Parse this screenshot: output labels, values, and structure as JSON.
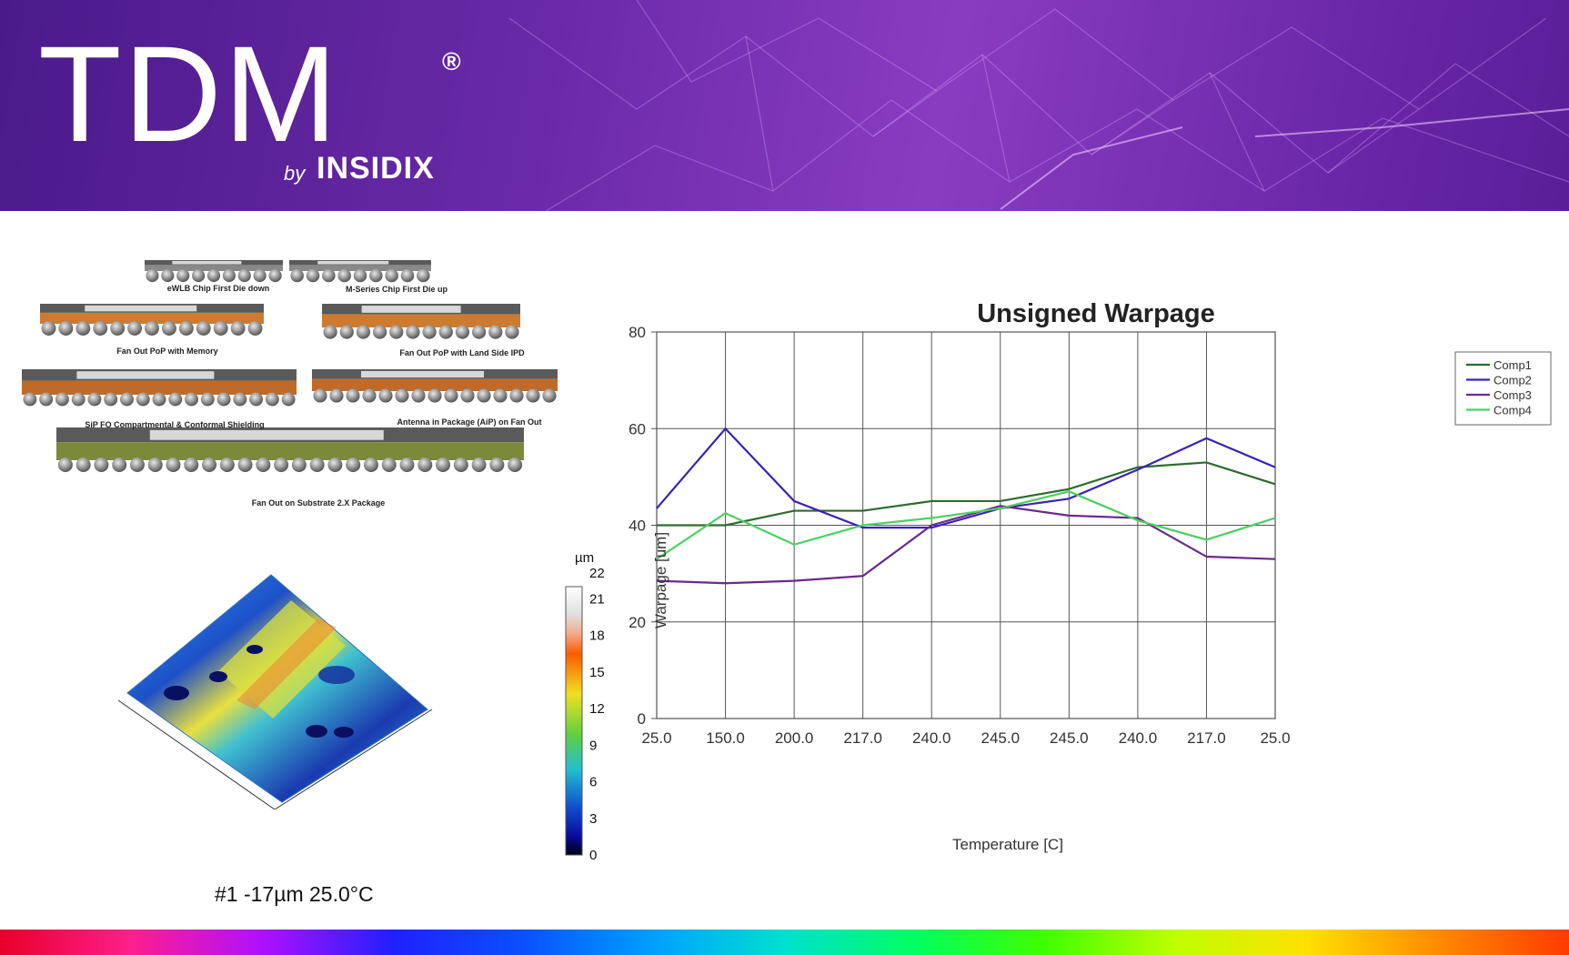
{
  "brand": {
    "logo_main": "TDM",
    "registered_mark": "®",
    "by": "by",
    "company": "INSIDIX"
  },
  "packages": [
    {
      "label": "eWLB Chip First Die down"
    },
    {
      "label": "M-Series Chip First Die up"
    },
    {
      "label": "Fan Out PoP with Memory"
    },
    {
      "label": "Fan Out PoP with Land Side IPD"
    },
    {
      "label": "SiP FO Compartmental & Conformal Shielding"
    },
    {
      "label": "Antenna in Package (AiP) on Fan Out"
    },
    {
      "label": "Fan Out on Substrate 2.X Package"
    }
  ],
  "surface_map": {
    "caption": "#1 -17µm 25.0°C",
    "unit": "µm",
    "colorbar_ticks": [
      "22",
      "21",
      "18",
      "15",
      "12",
      "9",
      "6",
      "3",
      "0"
    ]
  },
  "chart_data": {
    "type": "line",
    "title": "Unsigned Warpage",
    "xlabel": "Temperature [C]",
    "ylabel": "Warpage [um]",
    "categories": [
      "25.0",
      "150.0",
      "200.0",
      "217.0",
      "240.0",
      "245.0",
      "245.0",
      "240.0",
      "217.0",
      "25.0"
    ],
    "ylim": [
      0,
      80
    ],
    "yticks": [
      "0",
      "20",
      "40",
      "60",
      "80"
    ],
    "grid": true,
    "legend": "top-right",
    "series": [
      {
        "name": "Comp1",
        "color": "#2e6b2e",
        "values": [
          40,
          40,
          43,
          43,
          45,
          45,
          47.5,
          52,
          53,
          48.5
        ]
      },
      {
        "name": "Comp2",
        "color": "#3a22b8",
        "values": [
          43.5,
          60,
          45,
          39.5,
          39.5,
          43.5,
          45.5,
          51.5,
          58,
          52
        ]
      },
      {
        "name": "Comp3",
        "color": "#6a2a8a",
        "values": [
          28.5,
          28,
          28.5,
          29.5,
          40,
          44,
          42,
          41.5,
          33.5,
          33
        ]
      },
      {
        "name": "Comp4",
        "color": "#4cd060",
        "values": [
          33,
          42.5,
          36,
          40,
          41.5,
          43.5,
          47,
          41,
          37,
          41.5
        ]
      }
    ]
  }
}
